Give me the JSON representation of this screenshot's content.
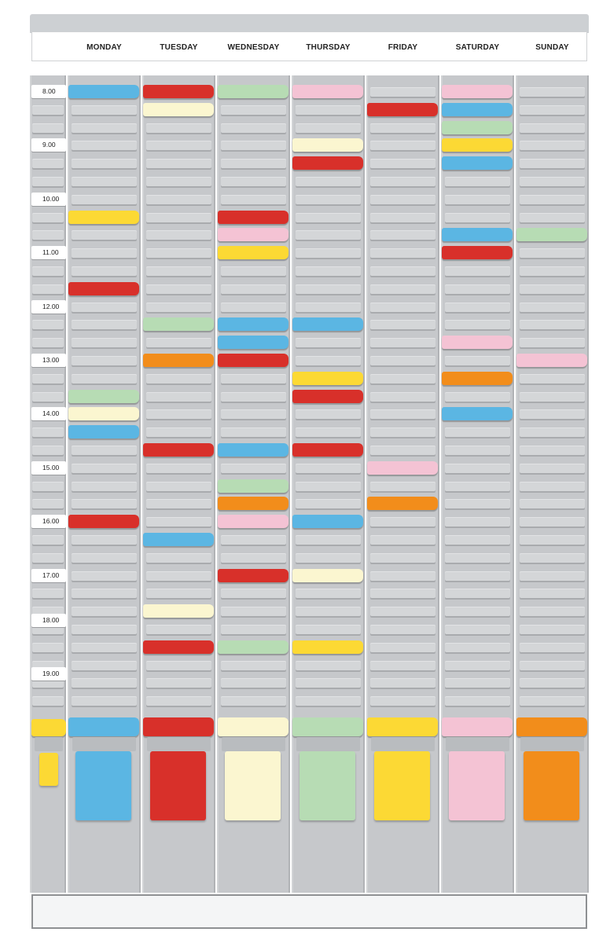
{
  "days": [
    "MONDAY",
    "TUESDAY",
    "WEDNESDAY",
    "THURSDAY",
    "FRIDAY",
    "SATURDAY",
    "SUNDAY"
  ],
  "times": [
    "8.00",
    "9.00",
    "10.00",
    "11.00",
    "12.00",
    "13.00",
    "14.00",
    "15.00",
    "16.00",
    "17.00",
    "18.00",
    "19.00"
  ],
  "colors": {
    "blue": "#5bb6e3",
    "red": "#d8302a",
    "cream": "#fbf6d0",
    "green": "#b7dcb4",
    "pink": "#f4c3d4",
    "yellow": "#fcd934",
    "orange": "#f28d1b",
    "board": "#c6c8cb",
    "slot": "#d4d6d8"
  },
  "column_cards": [
    {
      "day": "MONDAY",
      "cards": [
        [
          0,
          "blue"
        ],
        [
          7,
          "yellow"
        ],
        [
          11,
          "red"
        ],
        [
          17,
          "green"
        ],
        [
          18,
          "cream"
        ],
        [
          19,
          "blue"
        ],
        [
          24,
          "red"
        ]
      ]
    },
    {
      "day": "TUESDAY",
      "cards": [
        [
          0,
          "red"
        ],
        [
          1,
          "cream"
        ],
        [
          13,
          "green"
        ],
        [
          15,
          "orange"
        ],
        [
          20,
          "red"
        ],
        [
          25,
          "blue"
        ],
        [
          29,
          "cream"
        ],
        [
          31,
          "red"
        ]
      ]
    },
    {
      "day": "WEDNESDAY",
      "cards": [
        [
          0,
          "green"
        ],
        [
          7,
          "red"
        ],
        [
          8,
          "pink"
        ],
        [
          9,
          "yellow"
        ],
        [
          13,
          "blue"
        ],
        [
          14,
          "blue"
        ],
        [
          15,
          "red"
        ],
        [
          20,
          "blue"
        ],
        [
          22,
          "green"
        ],
        [
          23,
          "orange"
        ],
        [
          24,
          "pink"
        ],
        [
          27,
          "red"
        ],
        [
          31,
          "green"
        ]
      ]
    },
    {
      "day": "THURSDAY",
      "cards": [
        [
          0,
          "pink"
        ],
        [
          3,
          "cream"
        ],
        [
          4,
          "red"
        ],
        [
          13,
          "blue"
        ],
        [
          16,
          "yellow"
        ],
        [
          17,
          "red"
        ],
        [
          20,
          "red"
        ],
        [
          24,
          "blue"
        ],
        [
          27,
          "cream"
        ],
        [
          31,
          "yellow"
        ]
      ]
    },
    {
      "day": "FRIDAY",
      "cards": [
        [
          1,
          "red"
        ],
        [
          21,
          "pink"
        ],
        [
          23,
          "orange"
        ]
      ]
    },
    {
      "day": "SATURDAY",
      "cards": [
        [
          0,
          "pink"
        ],
        [
          1,
          "blue"
        ],
        [
          2,
          "green"
        ],
        [
          3,
          "yellow"
        ],
        [
          4,
          "blue"
        ],
        [
          8,
          "blue"
        ],
        [
          9,
          "red"
        ],
        [
          14,
          "pink"
        ],
        [
          16,
          "orange"
        ],
        [
          18,
          "blue"
        ]
      ]
    },
    {
      "day": "SUNDAY",
      "cards": [
        [
          8,
          "green"
        ],
        [
          15,
          "pink"
        ]
      ]
    }
  ],
  "pockets": [
    "blue",
    "red",
    "cream",
    "green",
    "yellow",
    "pink",
    "orange"
  ],
  "side_pocket": "yellow"
}
